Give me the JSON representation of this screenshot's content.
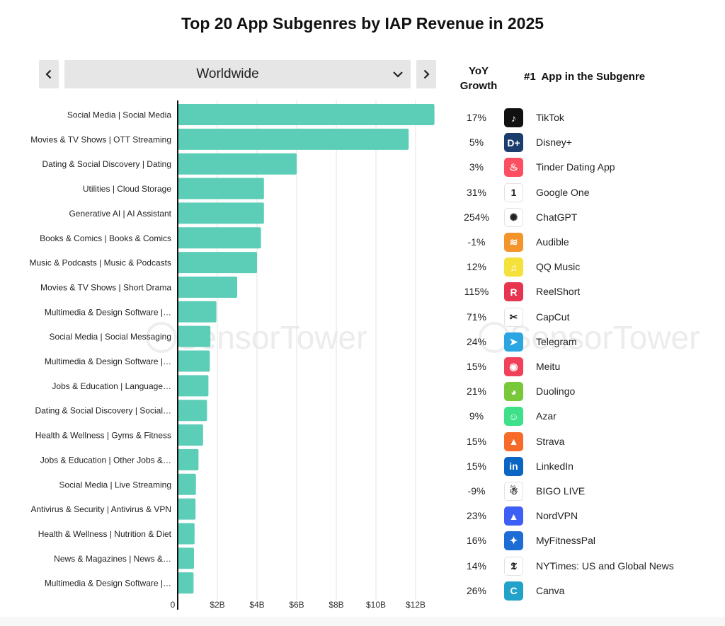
{
  "title": "Top 20 App Subgenres by IAP Revenue in 2025",
  "region_select": {
    "value": "Worldwide"
  },
  "headers": {
    "yoy_line1": "YoY",
    "yoy_line2": "Growth",
    "top_app": "#1  App in the Subgenre"
  },
  "watermark": "SensorTower",
  "colors": {
    "bar": "#5ccdb6",
    "axis": "#111111",
    "grid": "#e3e3e3"
  },
  "chart_data": {
    "type": "bar",
    "orientation": "horizontal",
    "title": "Top 20 App Subgenres by IAP Revenue in 2025",
    "xlim": [
      0,
      13
    ],
    "x_unit": "B USD",
    "x_ticks": [
      {
        "value": 0,
        "label": "0"
      },
      {
        "value": 2,
        "label": "$2B"
      },
      {
        "value": 4,
        "label": "$4B"
      },
      {
        "value": 6,
        "label": "$6B"
      },
      {
        "value": 8,
        "label": "$8B"
      },
      {
        "value": 10,
        "label": "$10B"
      },
      {
        "value": 12,
        "label": "$12B"
      }
    ],
    "grid": true,
    "categories": [
      "Social Media | Social Media",
      "Movies & TV Shows | OTT Streaming",
      "Dating & Social Discovery | Dating",
      "Utilities | Cloud Storage",
      "Generative AI | AI Assistant",
      "Books & Comics | Books & Comics",
      "Music & Podcasts | Music & Podcasts",
      "Movies & TV Shows | Short Drama",
      "Multimedia & Design Software |…",
      "Social Media | Social Messaging",
      "Multimedia & Design Software |…",
      "Jobs & Education | Language…",
      "Dating & Social Discovery | Social…",
      "Health & Wellness | Gyms & Fitness",
      "Jobs & Education | Other Jobs &…",
      "Social Media | Live Streaming",
      "Antivirus & Security | Antivirus & VPN",
      "Health & Wellness | Nutrition & Diet",
      "News & Magazines | News &…",
      "Multimedia & Design Software |…"
    ],
    "values": [
      12.95,
      11.65,
      6.0,
      4.35,
      4.35,
      4.2,
      4.0,
      3.0,
      1.95,
      1.65,
      1.62,
      1.55,
      1.48,
      1.28,
      1.05,
      0.92,
      0.9,
      0.85,
      0.82,
      0.8
    ]
  },
  "apps": [
    {
      "yoy": "17%",
      "name": "TikTok",
      "icon": "tiktok-icon",
      "icon_color": "#111111",
      "glyph": "♪"
    },
    {
      "yoy": "5%",
      "name": "Disney+",
      "icon": "disney-plus-icon",
      "icon_color": "#1a3d6e",
      "glyph": "D+"
    },
    {
      "yoy": "3%",
      "name": "Tinder Dating App",
      "icon": "tinder-icon",
      "icon_color": "#fd4f62",
      "glyph": "♨"
    },
    {
      "yoy": "31%",
      "name": "Google One",
      "icon": "google-one-icon",
      "icon_color": "#ffffff",
      "glyph": "1"
    },
    {
      "yoy": "254%",
      "name": "ChatGPT",
      "icon": "chatgpt-icon",
      "icon_color": "#ffffff",
      "glyph": "✺"
    },
    {
      "yoy": "-1%",
      "name": "Audible",
      "icon": "audible-icon",
      "icon_color": "#f3952b",
      "glyph": "≋"
    },
    {
      "yoy": "12%",
      "name": "QQ Music",
      "icon": "qq-music-icon",
      "icon_color": "#f5e13b",
      "glyph": "♫"
    },
    {
      "yoy": "115%",
      "name": "ReelShort",
      "icon": "reelshort-icon",
      "icon_color": "#e7344f",
      "glyph": "R"
    },
    {
      "yoy": "71%",
      "name": "CapCut",
      "icon": "capcut-icon",
      "icon_color": "#ffffff",
      "glyph": "✂"
    },
    {
      "yoy": "24%",
      "name": "Telegram",
      "icon": "telegram-icon",
      "icon_color": "#2ba6e1",
      "glyph": "➤"
    },
    {
      "yoy": "15%",
      "name": "Meitu",
      "icon": "meitu-icon",
      "icon_color": "#f0405a",
      "glyph": "◉"
    },
    {
      "yoy": "21%",
      "name": "Duolingo",
      "icon": "duolingo-icon",
      "icon_color": "#78c83a",
      "glyph": "◕"
    },
    {
      "yoy": "9%",
      "name": "Azar",
      "icon": "azar-icon",
      "icon_color": "#3ee08a",
      "glyph": "☺"
    },
    {
      "yoy": "15%",
      "name": "Strava",
      "icon": "strava-icon",
      "icon_color": "#f66a2a",
      "glyph": "▲"
    },
    {
      "yoy": "15%",
      "name": "LinkedIn",
      "icon": "linkedin-icon",
      "icon_color": "#0a66c2",
      "glyph": "in"
    },
    {
      "yoy": "-9%",
      "name": "BIGO LIVE",
      "icon": "bigo-live-icon",
      "icon_color": "#ffffff",
      "glyph": "☃"
    },
    {
      "yoy": "23%",
      "name": "NordVPN",
      "icon": "nordvpn-icon",
      "icon_color": "#3e5ff5",
      "glyph": "▲"
    },
    {
      "yoy": "16%",
      "name": "MyFitnessPal",
      "icon": "myfitnesspal-icon",
      "icon_color": "#1e6dd6",
      "glyph": "✦"
    },
    {
      "yoy": "14%",
      "name": "NYTimes: US and Global News",
      "icon": "nytimes-icon",
      "icon_color": "#ffffff",
      "glyph": "𝕿"
    },
    {
      "yoy": "26%",
      "name": "Canva",
      "icon": "canva-icon",
      "icon_color": "#22a2c8",
      "glyph": "C"
    }
  ]
}
